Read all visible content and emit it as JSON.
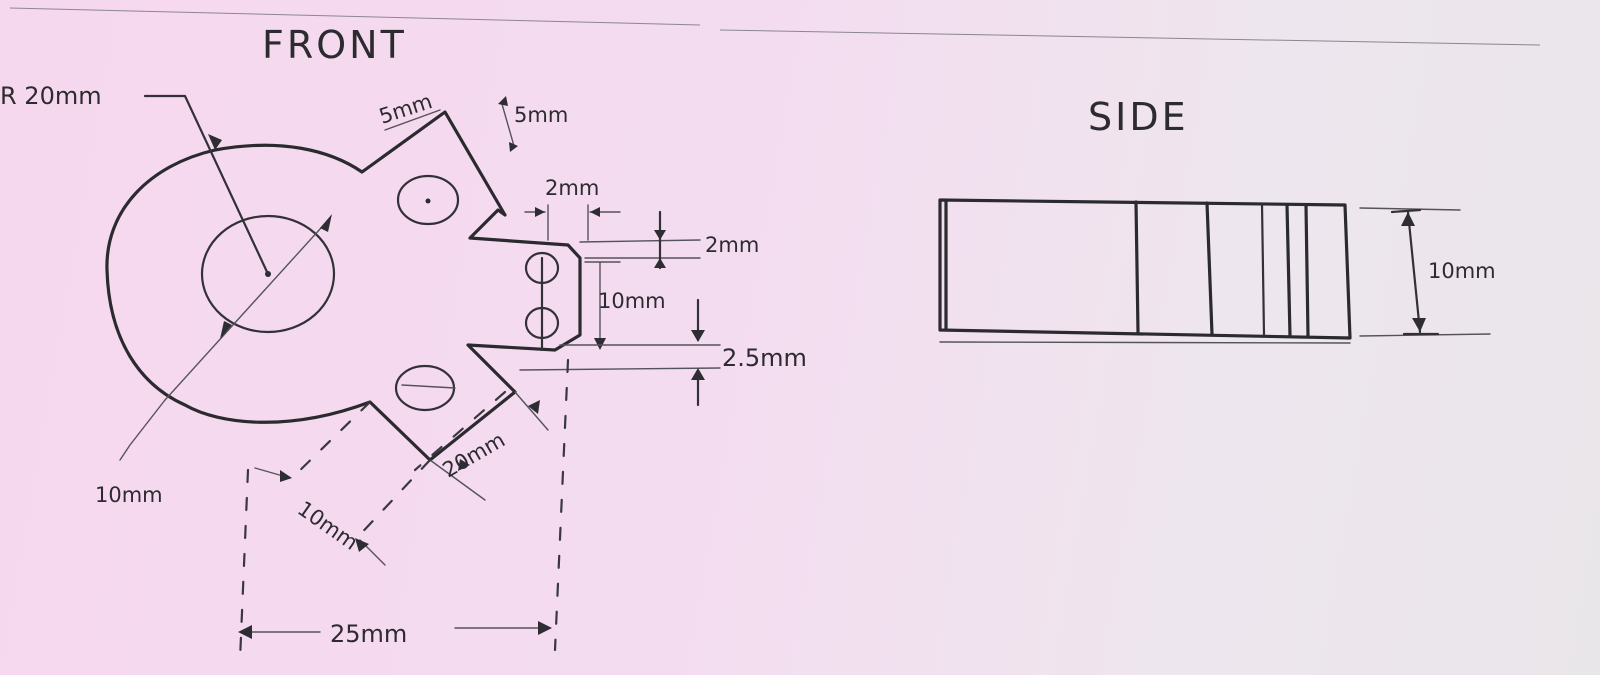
{
  "views": {
    "front": {
      "title": "FRONT",
      "dims": {
        "radius": "R 20mm",
        "tab_width": "5mm",
        "tab_height": "5mm",
        "gap_width": "2mm",
        "gap_height": "2mm",
        "slot_length": "10mm",
        "offset": "2.5mm",
        "diameter": "10mm",
        "chamfer_long": "20mm",
        "chamfer_short": "10mm",
        "overall_width": "25mm"
      }
    },
    "side": {
      "title": "SIDE",
      "dims": {
        "thickness": "10mm"
      }
    }
  }
}
